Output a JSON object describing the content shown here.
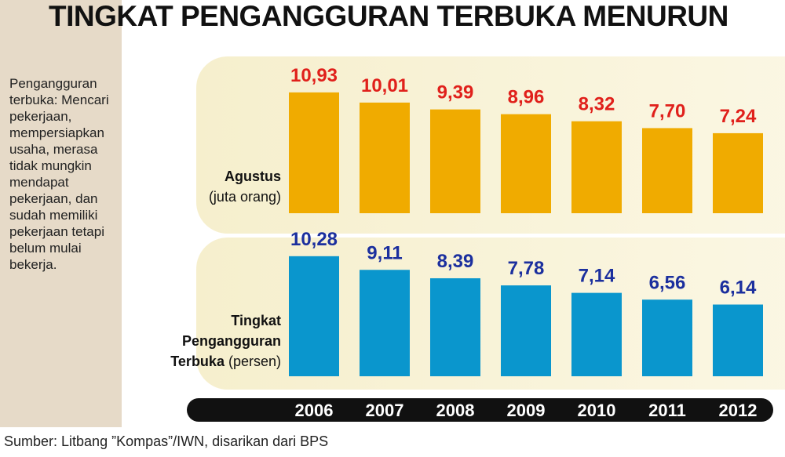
{
  "title": "TINGKAT PENGANGGURAN TERBUKA MENURUN",
  "note": "Pengangguran terbuka: Mencari pekerjaan, mempersiapkan usaha, merasa tidak mungkin mendapat pekerjaan, dan sudah memiliki pekerjaan tetapi belum mulai bekerja.",
  "source": "Sumber: Litbang ”Kompas”/IWN, disarikan dari BPS",
  "chart_data": {
    "type": "bar",
    "categories": [
      "2006",
      "2007",
      "2008",
      "2009",
      "2010",
      "2011",
      "2012"
    ],
    "series": [
      {
        "name": "Agustus",
        "unit": "(juta orang)",
        "color": "#f0ab00",
        "label_color": "#e0201b",
        "values": [
          10.93,
          10.01,
          9.39,
          8.96,
          8.32,
          7.7,
          7.24
        ],
        "value_labels": [
          "10,93",
          "10,01",
          "9,39",
          "8,96",
          "8,32",
          "7,70",
          "7,24"
        ]
      },
      {
        "name": "Tingkat Pengangguran Terbuka",
        "unit": "(persen)",
        "color": "#0a96cd",
        "label_color": "#1b2f9e",
        "values": [
          10.28,
          9.11,
          8.39,
          7.78,
          7.14,
          6.56,
          6.14
        ],
        "value_labels": [
          "10,28",
          "9,11",
          "8,39",
          "7,78",
          "7,14",
          "6,56",
          "6,14"
        ]
      }
    ]
  }
}
